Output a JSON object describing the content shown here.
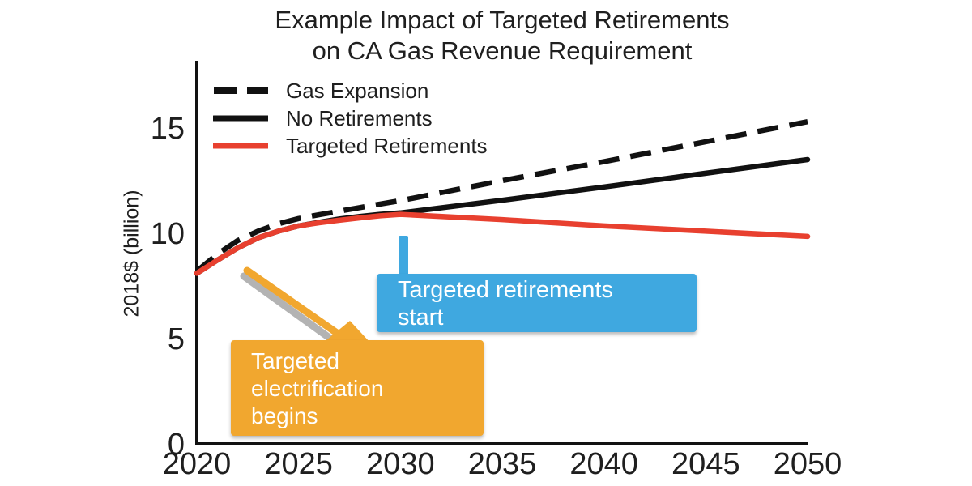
{
  "title": {
    "lines": [
      "Example Impact of Targeted Retirements",
      "on CA Gas Revenue Requirement"
    ]
  },
  "y_axis": {
    "label": "2018$ (billion)",
    "ticks": [
      "0",
      "5",
      "10",
      "15"
    ]
  },
  "x_axis": {
    "ticks": [
      "2020",
      "2025",
      "2030",
      "2035",
      "2040",
      "2045",
      "2050"
    ]
  },
  "annotations": {
    "retirements_start": {
      "lines": [
        "Targeted retirements",
        "start"
      ],
      "color": "#3fa8e0",
      "points_to_year": 2030
    },
    "electrification_begins": {
      "lines": [
        "Targeted",
        "electrification",
        "begins"
      ],
      "color": "#f1a72f",
      "shadow_color": "#b3b3b3",
      "points_to_year": 2022
    }
  },
  "chart_data": {
    "type": "line",
    "title": "Example Impact of Targeted Retirements on CA Gas Revenue Requirement",
    "xlabel": "",
    "ylabel": "2018$ (billion)",
    "xlim": [
      2020,
      2050
    ],
    "ylim": [
      0,
      18
    ],
    "grid": false,
    "legend_position": "upper left",
    "x_ticks": [
      "2020",
      "2025",
      "2030",
      "2035",
      "2040",
      "2045",
      "2050"
    ],
    "y_ticks": [
      "0",
      "5",
      "10",
      "15"
    ],
    "x": [
      2020,
      2021,
      2022,
      2023,
      2024,
      2025,
      2026,
      2027,
      2028,
      2029,
      2030,
      2035,
      2040,
      2045,
      2050
    ],
    "series": [
      {
        "name": "Gas Expansion",
        "style": "dashed",
        "color": "#111111",
        "values": [
          8.2,
          9.0,
          9.65,
          10.1,
          10.45,
          10.7,
          10.88,
          11.05,
          11.22,
          11.39,
          11.55,
          12.5,
          13.4,
          14.35,
          15.3
        ]
      },
      {
        "name": "No Retirements",
        "style": "solid",
        "color": "#111111",
        "values": [
          8.1,
          8.72,
          9.3,
          9.78,
          10.1,
          10.35,
          10.52,
          10.68,
          10.8,
          10.9,
          10.97,
          11.57,
          12.2,
          12.85,
          13.5
        ]
      },
      {
        "name": "Targeted Retirements",
        "style": "solid",
        "color": "#e8402f",
        "values": [
          8.1,
          8.72,
          9.3,
          9.78,
          10.1,
          10.35,
          10.5,
          10.62,
          10.73,
          10.83,
          10.9,
          10.65,
          10.35,
          10.1,
          9.85
        ]
      }
    ]
  }
}
